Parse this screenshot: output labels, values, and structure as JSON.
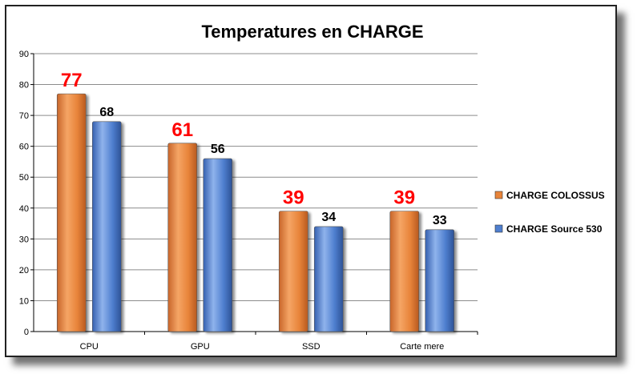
{
  "chart_data": {
    "type": "bar",
    "title": "Temperatures en CHARGE",
    "xlabel": "",
    "ylabel": "",
    "ylim": [
      0,
      90
    ],
    "yticks": [
      0,
      10,
      20,
      30,
      40,
      50,
      60,
      70,
      80,
      90
    ],
    "categories": [
      "CPU",
      "GPU",
      "SSD",
      "Carte mere"
    ],
    "series": [
      {
        "name": "CHARGE COLOSSUS",
        "values": [
          77,
          61,
          39,
          39
        ],
        "color": "#e8843a",
        "label_color": "#ff0000"
      },
      {
        "name": "CHARGE Source 530",
        "values": [
          68,
          56,
          34,
          33
        ],
        "color": "#4f7fcf",
        "label_color": "#000000"
      }
    ],
    "grid": true,
    "legend": "right"
  }
}
